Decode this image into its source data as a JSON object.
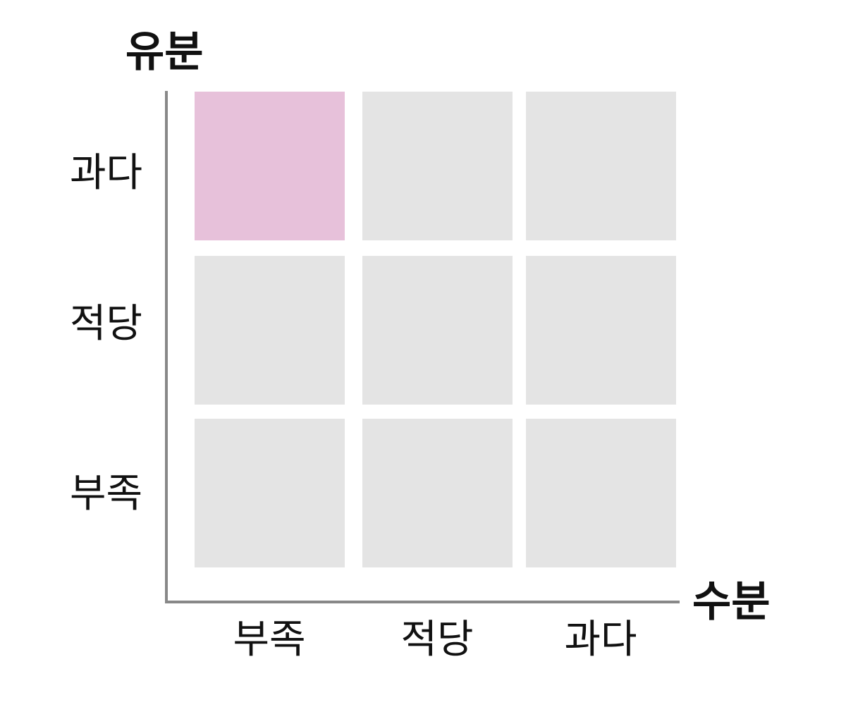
{
  "axes": {
    "y_title": "유분",
    "x_title": "수분",
    "y_ticks": [
      "과다",
      "적당",
      "부족"
    ],
    "x_ticks": [
      "부족",
      "적당",
      "과다"
    ]
  },
  "grid": {
    "highlight_color": "#e7c1da",
    "default_color": "#e4e4e4",
    "axis_color": "#888888",
    "rows": [
      {
        "oil": "과다",
        "cells": [
          {
            "moisture": "부족",
            "highlighted": true
          },
          {
            "moisture": "적당",
            "highlighted": false
          },
          {
            "moisture": "과다",
            "highlighted": false
          }
        ]
      },
      {
        "oil": "적당",
        "cells": [
          {
            "moisture": "부족",
            "highlighted": false
          },
          {
            "moisture": "적당",
            "highlighted": false
          },
          {
            "moisture": "과다",
            "highlighted": false
          }
        ]
      },
      {
        "oil": "부족",
        "cells": [
          {
            "moisture": "부족",
            "highlighted": false
          },
          {
            "moisture": "적당",
            "highlighted": false
          },
          {
            "moisture": "과다",
            "highlighted": false
          }
        ]
      }
    ]
  }
}
